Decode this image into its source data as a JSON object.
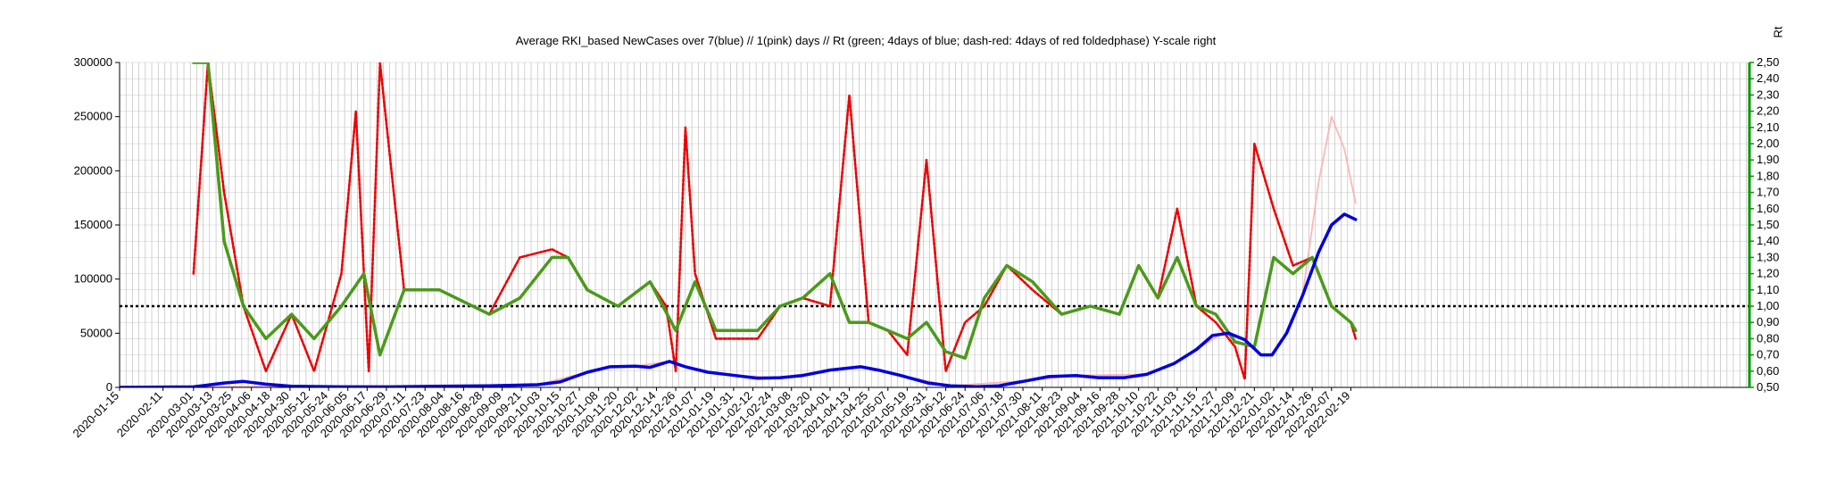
{
  "chart_data": {
    "type": "line",
    "title": "Average RKI_based NewCases over 7(blue) // 1(pink) days //  Rt (green; 4days of blue; dash-red: 4days of red foldedphase) Y-scale right",
    "y2label": "Rt",
    "ylim": [
      0,
      300000
    ],
    "y2lim": [
      0.5,
      2.5
    ],
    "grid": true,
    "y_ticks": [
      "0",
      "50000",
      "100000",
      "150000",
      "200000",
      "250000",
      "300000"
    ],
    "y2_ticks": [
      "0,50",
      "0,60",
      "0,70",
      "0,80",
      "0,90",
      "1,00",
      "1,10",
      "1,20",
      "1,30",
      "1,40",
      "1,50",
      "1,60",
      "1,70",
      "1,80",
      "1,90",
      "2,00",
      "2,10",
      "2,20",
      "2,30",
      "2,40",
      "2,50"
    ],
    "x_ticks": [
      "2020-01-15",
      "2020-02-11",
      "2020-03-01",
      "2020-03-13",
      "2020-03-25",
      "2020-04-06",
      "2020-04-18",
      "2020-04-30",
      "2020-05-12",
      "2020-05-24",
      "2020-06-05",
      "2020-06-17",
      "2020-06-29",
      "2020-07-11",
      "2020-07-23",
      "2020-08-04",
      "2020-08-16",
      "2020-08-28",
      "2020-09-09",
      "2020-09-21",
      "2020-10-03",
      "2020-10-15",
      "2020-10-27",
      "2020-11-08",
      "2020-11-20",
      "2020-12-02",
      "2020-12-14",
      "2020-12-26",
      "2021-01-07",
      "2021-01-19",
      "2021-01-31",
      "2021-02-12",
      "2021-02-24",
      "2021-03-08",
      "2021-03-20",
      "2021-04-01",
      "2021-04-13",
      "2021-04-25",
      "2021-05-07",
      "2021-05-19",
      "2021-05-31",
      "2021-06-12",
      "2021-06-24",
      "2021-07-06",
      "2021-07-18",
      "2021-07-30",
      "2021-08-11",
      "2021-08-23",
      "2021-09-04",
      "2021-09-16",
      "2021-09-28",
      "2021-10-10",
      "2021-10-22",
      "2021-11-03",
      "2021-11-15",
      "2021-11-27",
      "2021-12-09",
      "2021-12-21",
      "2022-01-02",
      "2022-01-14",
      "2022-01-26",
      "2022-02-07",
      "2022-02-19"
    ],
    "reference_line": {
      "axis": "y2",
      "value": 1.0,
      "style": "dotted",
      "color": "#000000"
    },
    "series": [
      {
        "role": "7-day average new cases (blue)",
        "axis": "y",
        "color": "#0000dd",
        "x": [
          "2020-01-15",
          "2020-03-01",
          "2020-03-20",
          "2020-04-01",
          "2020-04-15",
          "2020-05-01",
          "2020-06-01",
          "2020-07-01",
          "2020-08-01",
          "2020-09-01",
          "2020-10-01",
          "2020-10-15",
          "2020-11-01",
          "2020-11-15",
          "2020-12-01",
          "2020-12-10",
          "2020-12-22",
          "2021-01-01",
          "2021-01-15",
          "2021-02-01",
          "2021-02-15",
          "2021-03-01",
          "2021-03-15",
          "2021-04-01",
          "2021-04-20",
          "2021-05-01",
          "2021-05-15",
          "2021-06-01",
          "2021-06-15",
          "2021-07-01",
          "2021-07-15",
          "2021-08-01",
          "2021-08-15",
          "2021-09-01",
          "2021-09-15",
          "2021-10-01",
          "2021-10-15",
          "2021-11-01",
          "2021-11-15",
          "2021-11-25",
          "2021-12-05",
          "2021-12-15",
          "2021-12-25",
          "2022-01-01",
          "2022-01-10",
          "2022-01-20",
          "2022-01-30",
          "2022-02-07",
          "2022-02-15",
          "2022-02-22"
        ],
        "values": [
          0,
          500,
          4000,
          5500,
          3000,
          1000,
          500,
          400,
          1000,
          1500,
          2500,
          5000,
          14000,
          19000,
          19500,
          18500,
          24000,
          19000,
          14000,
          11000,
          8500,
          9000,
          11000,
          16000,
          19000,
          16000,
          11000,
          4000,
          1500,
          700,
          1500,
          6000,
          10000,
          11000,
          9000,
          9000,
          12000,
          22000,
          35000,
          48000,
          50000,
          44000,
          30000,
          30000,
          50000,
          85000,
          125000,
          150000,
          160000,
          155000
        ]
      },
      {
        "role": "1-day new cases (pink)",
        "axis": "y",
        "color": "#ffaaaa",
        "x": [
          "2020-01-15",
          "2020-10-01",
          "2020-11-01",
          "2020-11-15",
          "2020-12-01",
          "2020-12-22",
          "2021-01-01",
          "2021-01-15",
          "2021-02-01",
          "2021-03-01",
          "2021-04-01",
          "2021-04-20",
          "2021-05-15",
          "2021-06-15",
          "2021-08-01",
          "2021-09-01",
          "2021-10-15",
          "2021-11-01",
          "2021-11-15",
          "2021-12-01",
          "2021-12-15",
          "2021-12-25",
          "2022-01-01",
          "2022-01-10",
          "2022-01-20",
          "2022-01-30",
          "2022-02-07",
          "2022-02-15",
          "2022-02-22"
        ],
        "values": [
          0,
          2500,
          14000,
          19000,
          19500,
          24000,
          19000,
          14000,
          11000,
          9000,
          16000,
          19000,
          11000,
          1500,
          6000,
          11000,
          12000,
          22000,
          35000,
          50000,
          44000,
          30000,
          30000,
          50000,
          85000,
          190000,
          250000,
          220000,
          170000
        ]
      },
      {
        "role": "Rt (green; 4days of blue)",
        "axis": "y2",
        "color": "#4a9a1a",
        "x": [
          "2020-03-01",
          "2020-03-10",
          "2020-03-20",
          "2020-04-01",
          "2020-04-15",
          "2020-05-01",
          "2020-05-15",
          "2020-06-01",
          "2020-06-15",
          "2020-06-25",
          "2020-07-10",
          "2020-08-01",
          "2020-09-01",
          "2020-09-20",
          "2020-10-10",
          "2020-10-20",
          "2020-11-01",
          "2020-11-20",
          "2020-12-10",
          "2020-12-26",
          "2021-01-07",
          "2021-01-20",
          "2021-02-15",
          "2021-03-01",
          "2021-03-15",
          "2021-04-01",
          "2021-04-13",
          "2021-04-25",
          "2021-05-07",
          "2021-05-19",
          "2021-05-31",
          "2021-06-12",
          "2021-06-24",
          "2021-07-06",
          "2021-07-20",
          "2021-08-05",
          "2021-08-23",
          "2021-09-10",
          "2021-09-28",
          "2021-10-10",
          "2021-10-22",
          "2021-11-03",
          "2021-11-15",
          "2021-11-27",
          "2021-12-09",
          "2021-12-21",
          "2022-01-02",
          "2022-01-14",
          "2022-01-26",
          "2022-02-07",
          "2022-02-19",
          "2022-02-22"
        ],
        "values": [
          2.5,
          2.5,
          1.4,
          1.0,
          0.8,
          0.95,
          0.8,
          1.0,
          1.2,
          0.7,
          1.1,
          1.1,
          0.95,
          1.05,
          1.3,
          1.3,
          1.1,
          1.0,
          1.15,
          0.85,
          1.15,
          0.85,
          0.85,
          1.0,
          1.05,
          1.2,
          0.9,
          0.9,
          0.85,
          0.8,
          0.9,
          0.72,
          0.68,
          1.05,
          1.25,
          1.15,
          0.95,
          1.0,
          0.95,
          1.25,
          1.05,
          1.3,
          1.0,
          0.95,
          0.78,
          0.75,
          1.3,
          1.2,
          1.3,
          1.0,
          0.9,
          0.85
        ]
      },
      {
        "role": "Rt (dash-red; 4days of red foldedphase)",
        "axis": "y2",
        "color": "#ee0000",
        "style": "dotted",
        "x": [
          "2020-03-01",
          "2020-03-10",
          "2020-03-20",
          "2020-04-01",
          "2020-04-15",
          "2020-05-01",
          "2020-05-15",
          "2020-06-01",
          "2020-06-10",
          "2020-06-18",
          "2020-06-25",
          "2020-07-10",
          "2020-08-01",
          "2020-09-01",
          "2020-09-20",
          "2020-10-10",
          "2020-10-20",
          "2020-11-01",
          "2020-11-20",
          "2020-12-10",
          "2020-12-20",
          "2020-12-26",
          "2021-01-01",
          "2021-01-07",
          "2021-01-20",
          "2021-02-15",
          "2021-03-01",
          "2021-03-15",
          "2021-04-01",
          "2021-04-13",
          "2021-04-25",
          "2021-05-07",
          "2021-05-19",
          "2021-05-31",
          "2021-06-12",
          "2021-06-24",
          "2021-07-06",
          "2021-07-20",
          "2021-08-05",
          "2021-08-23",
          "2021-09-10",
          "2021-09-28",
          "2021-10-10",
          "2021-10-22",
          "2021-11-03",
          "2021-11-15",
          "2021-11-27",
          "2021-12-09",
          "2021-12-15",
          "2021-12-21",
          "2022-01-02",
          "2022-01-14",
          "2022-01-26",
          "2022-02-07",
          "2022-02-19",
          "2022-02-22"
        ],
        "values": [
          1.2,
          2.5,
          1.7,
          1.0,
          0.6,
          0.95,
          0.6,
          1.2,
          2.2,
          0.6,
          2.5,
          1.1,
          1.1,
          0.95,
          1.3,
          1.35,
          1.3,
          1.1,
          1.0,
          1.15,
          1.0,
          0.6,
          2.1,
          1.2,
          0.8,
          0.8,
          1.0,
          1.05,
          1.0,
          2.3,
          0.9,
          0.85,
          0.7,
          1.9,
          0.6,
          0.9,
          1.0,
          1.25,
          1.1,
          0.95,
          1.0,
          0.95,
          1.25,
          1.05,
          1.6,
          1.0,
          0.9,
          0.75,
          0.55,
          2.0,
          1.6,
          1.25,
          1.3,
          1.0,
          0.9,
          0.8
        ]
      }
    ]
  }
}
